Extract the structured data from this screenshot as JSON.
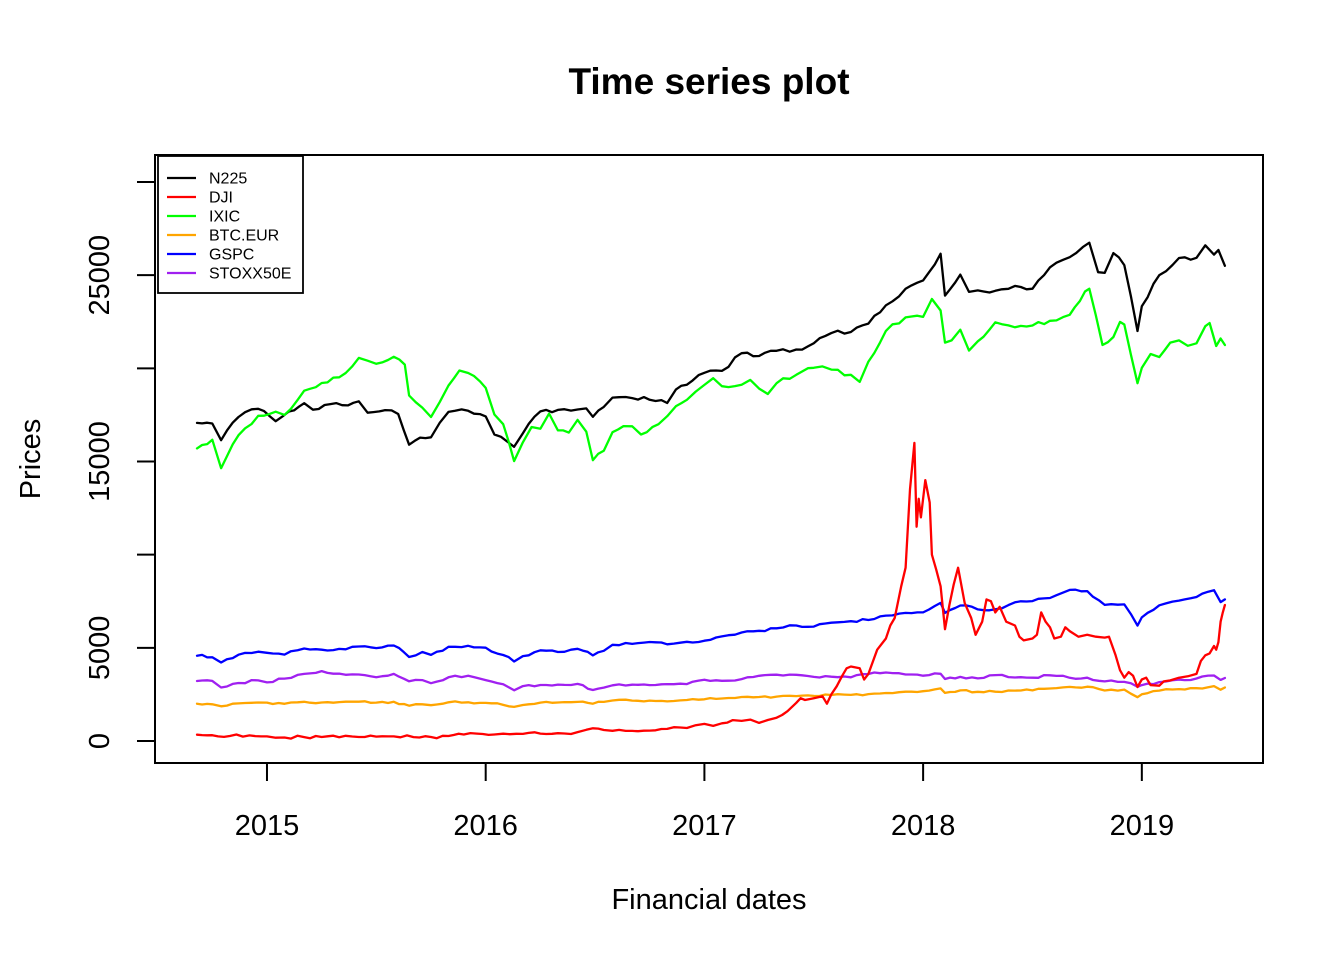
{
  "chart_data": {
    "type": "line",
    "title": "Time series plot",
    "xlabel": "Financial dates",
    "ylabel": "Prices",
    "xlim": [
      2014.488,
      2019.554
    ],
    "ylim": [
      -1180,
      31447
    ],
    "grid": false,
    "legend_position": "top-left",
    "x_ticks": {
      "values": [
        2015,
        2016,
        2017,
        2018,
        2019
      ],
      "labels": [
        "2015",
        "2016",
        "2017",
        "2018",
        "2019"
      ]
    },
    "y_ticks": {
      "values": [
        0,
        5000,
        10000,
        15000,
        20000,
        25000,
        30000
      ],
      "labels": [
        "0",
        "5000",
        "",
        "15000",
        "",
        "25000",
        ""
      ]
    },
    "series": [
      {
        "name": "N225",
        "color": "#000000",
        "x": [
          2014.68,
          2014.75,
          2014.79,
          2014.87,
          2014.96,
          2015.04,
          2015.1,
          2015.17,
          2015.21,
          2015.29,
          2015.37,
          2015.42,
          2015.46,
          2015.54,
          2015.6,
          2015.65,
          2015.7,
          2015.75,
          2015.79,
          2015.83,
          2015.92,
          2016.0,
          2016.04,
          2016.13,
          2016.17,
          2016.25,
          2016.33,
          2016.42,
          2016.46,
          2016.49,
          2016.54,
          2016.58,
          2016.67,
          2016.75,
          2016.83,
          2016.87,
          2016.92,
          2017.0,
          2017.08,
          2017.17,
          2017.25,
          2017.33,
          2017.42,
          2017.5,
          2017.58,
          2017.67,
          2017.75,
          2017.83,
          2017.92,
          2018.0,
          2018.08,
          2018.1,
          2018.17,
          2018.21,
          2018.25,
          2018.33,
          2018.42,
          2018.5,
          2018.58,
          2018.67,
          2018.76,
          2018.8,
          2018.83,
          2018.87,
          2018.92,
          2018.98,
          2019.0,
          2019.08,
          2019.17,
          2019.25,
          2019.29,
          2019.33,
          2019.35,
          2019.38
        ],
        "values": [
          17070,
          17040,
          16140,
          17390,
          17830,
          17160,
          17680,
          18130,
          17780,
          18080,
          18010,
          18230,
          17620,
          17760,
          17550,
          15900,
          16280,
          16300,
          17080,
          17660,
          17720,
          17420,
          16450,
          15790,
          16520,
          17690,
          17770,
          17790,
          17850,
          17400,
          17930,
          18430,
          18400,
          18310,
          18140,
          18870,
          19120,
          19760,
          19860,
          20810,
          20660,
          20940,
          21010,
          21350,
          21890,
          21950,
          22400,
          23380,
          24270,
          24720,
          26150,
          23900,
          25030,
          24100,
          24180,
          24160,
          24420,
          24270,
          25420,
          25960,
          26740,
          25160,
          25120,
          26180,
          25540,
          22000,
          23330,
          25000,
          25920,
          25930,
          26600,
          26100,
          26350,
          25500
        ]
      },
      {
        "name": "DJI",
        "color": "#FF0000",
        "x": [
          2014.68,
          2014.75,
          2014.83,
          2014.92,
          2015.0,
          2015.04,
          2015.08,
          2015.17,
          2015.25,
          2015.33,
          2015.42,
          2015.5,
          2015.58,
          2015.67,
          2015.75,
          2015.83,
          2015.9,
          2015.96,
          2016.04,
          2016.08,
          2016.17,
          2016.25,
          2016.33,
          2016.42,
          2016.46,
          2016.49,
          2016.54,
          2016.58,
          2016.67,
          2016.75,
          2016.83,
          2016.92,
          2016.96,
          2017.0,
          2017.04,
          2017.08,
          2017.13,
          2017.17,
          2017.21,
          2017.25,
          2017.29,
          2017.33,
          2017.38,
          2017.42,
          2017.44,
          2017.46,
          2017.5,
          2017.54,
          2017.56,
          2017.58,
          2017.63,
          2017.65,
          2017.67,
          2017.71,
          2017.73,
          2017.75,
          2017.79,
          2017.83,
          2017.85,
          2017.87,
          2017.9,
          2017.92,
          2017.94,
          2017.96,
          2017.97,
          2017.98,
          2017.99,
          2018.01,
          2018.03,
          2018.04,
          2018.06,
          2018.08,
          2018.1,
          2018.12,
          2018.14,
          2018.16,
          2018.19,
          2018.22,
          2018.24,
          2018.27,
          2018.29,
          2018.31,
          2018.33,
          2018.35,
          2018.38,
          2018.42,
          2018.44,
          2018.46,
          2018.5,
          2018.52,
          2018.54,
          2018.56,
          2018.58,
          2018.6,
          2018.63,
          2018.65,
          2018.67,
          2018.71,
          2018.75,
          2018.79,
          2018.83,
          2018.85,
          2018.88,
          2018.9,
          2018.92,
          2018.94,
          2018.96,
          2018.98,
          2019.0,
          2019.02,
          2019.04,
          2019.08,
          2019.1,
          2019.13,
          2019.17,
          2019.21,
          2019.25,
          2019.27,
          2019.29,
          2019.31,
          2019.33,
          2019.34,
          2019.35,
          2019.36,
          2019.37,
          2019.38
        ],
        "values": [
          340,
          310,
          270,
          300,
          250,
          180,
          190,
          210,
          215,
          205,
          215,
          235,
          250,
          210,
          215,
          270,
          350,
          400,
          350,
          390,
          380,
          400,
          420,
          480,
          600,
          680,
          590,
          550,
          540,
          560,
          650,
          700,
          850,
          920,
          810,
          950,
          1120,
          1080,
          1150,
          970,
          1130,
          1250,
          1600,
          2050,
          2300,
          2200,
          2300,
          2400,
          2000,
          2500,
          3500,
          3900,
          4000,
          3900,
          3300,
          3600,
          4900,
          5500,
          6200,
          6600,
          8300,
          9300,
          13500,
          16000,
          11500,
          13000,
          12000,
          14000,
          12800,
          10000,
          9200,
          8300,
          6000,
          7300,
          8400,
          9300,
          7400,
          6600,
          5700,
          6400,
          7600,
          7500,
          6900,
          7200,
          6400,
          6200,
          5600,
          5400,
          5500,
          5700,
          6900,
          6400,
          6100,
          5500,
          5600,
          6100,
          5900,
          5600,
          5700,
          5600,
          5550,
          5600,
          4600,
          3800,
          3400,
          3700,
          3500,
          2900,
          3300,
          3400,
          3000,
          2970,
          3200,
          3250,
          3400,
          3470,
          3600,
          4300,
          4600,
          4700,
          5100,
          4900,
          5300,
          6400,
          6900,
          7300
        ]
      },
      {
        "name": "IXIC",
        "color": "#00FF00",
        "x": [
          2014.68,
          2014.75,
          2014.79,
          2014.87,
          2014.96,
          2015.04,
          2015.08,
          2015.17,
          2015.25,
          2015.33,
          2015.42,
          2015.46,
          2015.5,
          2015.58,
          2015.63,
          2015.65,
          2015.71,
          2015.75,
          2015.79,
          2015.83,
          2015.88,
          2015.92,
          2016.0,
          2016.04,
          2016.08,
          2016.13,
          2016.17,
          2016.21,
          2016.25,
          2016.29,
          2016.33,
          2016.38,
          2016.42,
          2016.46,
          2016.49,
          2016.54,
          2016.58,
          2016.63,
          2016.67,
          2016.71,
          2016.79,
          2016.83,
          2016.87,
          2016.92,
          2016.96,
          2017.0,
          2017.04,
          2017.08,
          2017.17,
          2017.21,
          2017.25,
          2017.29,
          2017.33,
          2017.42,
          2017.5,
          2017.54,
          2017.58,
          2017.67,
          2017.71,
          2017.75,
          2017.83,
          2017.92,
          2018.0,
          2018.04,
          2018.08,
          2018.1,
          2018.13,
          2018.17,
          2018.21,
          2018.25,
          2018.33,
          2018.42,
          2018.5,
          2018.58,
          2018.67,
          2018.74,
          2018.76,
          2018.82,
          2018.87,
          2018.9,
          2018.92,
          2018.98,
          2019.0,
          2019.04,
          2019.08,
          2019.13,
          2019.17,
          2019.21,
          2019.25,
          2019.29,
          2019.31,
          2019.34,
          2019.36,
          2019.38
        ],
        "values": [
          15700,
          16170,
          14640,
          16410,
          17450,
          17670,
          17500,
          18800,
          19210,
          19520,
          20560,
          20410,
          20240,
          20620,
          20200,
          18540,
          17890,
          17390,
          18200,
          19080,
          19880,
          19750,
          18950,
          17520,
          17000,
          15020,
          16030,
          16850,
          16760,
          17570,
          16670,
          16550,
          17230,
          16600,
          15070,
          15580,
          16570,
          16900,
          16890,
          16450,
          17000,
          17430,
          17970,
          18310,
          18750,
          19110,
          19470,
          19040,
          19120,
          19380,
          18910,
          18620,
          19200,
          19650,
          20030,
          20100,
          19930,
          19650,
          19270,
          20360,
          22010,
          22730,
          22760,
          23720,
          23100,
          21380,
          21500,
          22070,
          20950,
          21450,
          22470,
          22200,
          22300,
          22550,
          22870,
          24120,
          24270,
          21250,
          21680,
          22490,
          22350,
          19200,
          20020,
          20770,
          20600,
          21380,
          21500,
          21210,
          21340,
          22260,
          22430,
          21200,
          21600,
          21250
        ]
      },
      {
        "name": "BTC.EUR",
        "color": "#FFA500",
        "x": [
          2014.68,
          2014.75,
          2014.79,
          2014.87,
          2014.96,
          2015.0,
          2015.08,
          2015.17,
          2015.25,
          2015.33,
          2015.42,
          2015.5,
          2015.58,
          2015.65,
          2015.71,
          2015.75,
          2015.83,
          2015.92,
          2016.0,
          2016.08,
          2016.13,
          2016.17,
          2016.25,
          2016.33,
          2016.42,
          2016.49,
          2016.54,
          2016.58,
          2016.67,
          2016.75,
          2016.83,
          2016.92,
          2017.0,
          2017.08,
          2017.17,
          2017.25,
          2017.33,
          2017.42,
          2017.5,
          2017.58,
          2017.67,
          2017.75,
          2017.83,
          2017.92,
          2018.0,
          2018.08,
          2018.1,
          2018.17,
          2018.25,
          2018.33,
          2018.42,
          2018.5,
          2018.58,
          2018.67,
          2018.75,
          2018.83,
          2018.92,
          2018.98,
          2019.0,
          2019.08,
          2019.17,
          2019.25,
          2019.33,
          2019.36,
          2019.38
        ],
        "values": [
          2000,
          1972,
          1862,
          2018,
          2068,
          2059,
          1995,
          2105,
          2068,
          2086,
          2107,
          2063,
          2104,
          1893,
          1972,
          1920,
          2079,
          2080,
          2044,
          1940,
          1829,
          1932,
          2060,
          2065,
          2097,
          2001,
          2099,
          2174,
          2171,
          2168,
          2126,
          2199,
          2239,
          2279,
          2364,
          2363,
          2384,
          2412,
          2423,
          2470,
          2472,
          2519,
          2575,
          2648,
          2674,
          2824,
          2581,
          2714,
          2641,
          2648,
          2705,
          2718,
          2816,
          2902,
          2914,
          2712,
          2760,
          2351,
          2507,
          2704,
          2784,
          2834,
          2946,
          2752,
          2873
        ]
      },
      {
        "name": "GSPC",
        "color": "#0000FF",
        "x": [
          2014.68,
          2014.75,
          2014.79,
          2014.87,
          2014.96,
          2015.0,
          2015.08,
          2015.17,
          2015.25,
          2015.33,
          2015.42,
          2015.5,
          2015.58,
          2015.65,
          2015.71,
          2015.75,
          2015.83,
          2015.92,
          2016.0,
          2016.08,
          2016.13,
          2016.17,
          2016.25,
          2016.33,
          2016.42,
          2016.49,
          2016.54,
          2016.58,
          2016.67,
          2016.75,
          2016.83,
          2016.92,
          2017.0,
          2017.08,
          2017.17,
          2017.25,
          2017.33,
          2017.42,
          2017.5,
          2017.58,
          2017.67,
          2017.75,
          2017.83,
          2017.92,
          2018.0,
          2018.08,
          2018.1,
          2018.17,
          2018.25,
          2018.33,
          2018.42,
          2018.5,
          2018.58,
          2018.67,
          2018.75,
          2018.83,
          2018.92,
          2018.98,
          2019.0,
          2019.08,
          2019.17,
          2019.25,
          2019.33,
          2019.36,
          2019.38
        ],
        "values": [
          4580,
          4493,
          4215,
          4630,
          4792,
          4736,
          4635,
          4964,
          4901,
          4941,
          5070,
          4987,
          5128,
          4506,
          4777,
          4620,
          5054,
          5109,
          5007,
          4614,
          4266,
          4558,
          4870,
          4775,
          4948,
          4594,
          4843,
          5162,
          5213,
          5312,
          5189,
          5324,
          5383,
          5615,
          5825,
          5912,
          6048,
          6199,
          6140,
          6348,
          6429,
          6496,
          6728,
          6874,
          6903,
          7411,
          6875,
          7273,
          7063,
          7066,
          7442,
          7510,
          7672,
          8109,
          8046,
          7306,
          7331,
          6193,
          6635,
          7282,
          7533,
          7729,
          8095,
          7453,
          7600
        ]
      },
      {
        "name": "STOXX50E",
        "color": "#A020F0",
        "x": [
          2014.68,
          2014.75,
          2014.79,
          2014.87,
          2014.96,
          2015.0,
          2015.08,
          2015.17,
          2015.25,
          2015.33,
          2015.42,
          2015.5,
          2015.58,
          2015.65,
          2015.71,
          2015.75,
          2015.83,
          2015.92,
          2016.0,
          2016.08,
          2016.13,
          2016.17,
          2016.25,
          2016.33,
          2016.42,
          2016.49,
          2016.54,
          2016.58,
          2016.67,
          2016.75,
          2016.83,
          2016.92,
          2017.0,
          2017.08,
          2017.17,
          2017.25,
          2017.33,
          2017.42,
          2017.5,
          2017.58,
          2017.67,
          2017.75,
          2017.83,
          2017.92,
          2018.0,
          2018.08,
          2018.1,
          2018.17,
          2018.25,
          2018.33,
          2018.42,
          2018.5,
          2018.58,
          2018.67,
          2018.75,
          2018.83,
          2018.92,
          2018.98,
          2019.0,
          2019.08,
          2019.17,
          2019.25,
          2019.33,
          2019.36,
          2019.38
        ],
        "values": [
          3220,
          3226,
          2874,
          3113,
          3251,
          3146,
          3351,
          3599,
          3750,
          3615,
          3570,
          3424,
          3601,
          3205,
          3269,
          3101,
          3418,
          3506,
          3268,
          3045,
          2720,
          2945,
          3005,
          3028,
          3063,
          2736,
          2865,
          2990,
          3023,
          3002,
          3055,
          3052,
          3291,
          3231,
          3320,
          3501,
          3560,
          3555,
          3442,
          3450,
          3421,
          3595,
          3674,
          3570,
          3504,
          3609,
          3325,
          3439,
          3362,
          3537,
          3407,
          3396,
          3525,
          3393,
          3399,
          3198,
          3173,
          2910,
          3001,
          3160,
          3298,
          3352,
          3515,
          3280,
          3380
        ]
      }
    ]
  }
}
